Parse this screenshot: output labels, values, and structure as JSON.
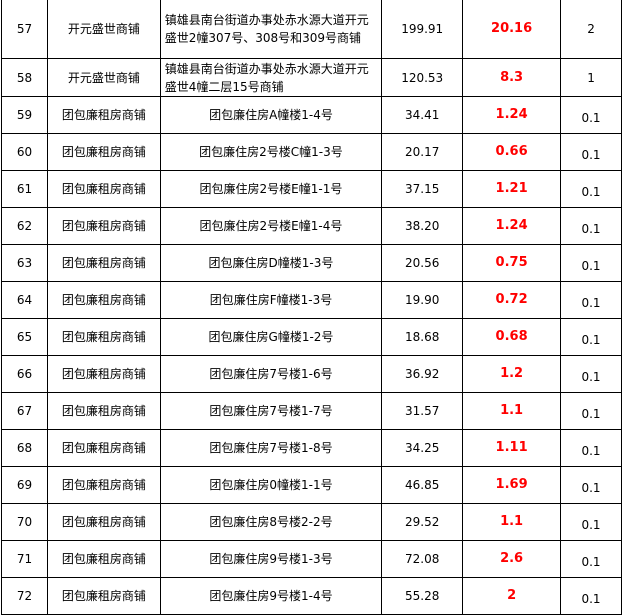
{
  "accent_color": "#ff0000",
  "rows": [
    {
      "no": "57",
      "name": "开元盛世商铺",
      "address": "镇雄县南台街道办事处赤水源大道开元盛世2幢307号、308号和309号商铺",
      "area": "199.91",
      "value": "20.16",
      "last": "2"
    },
    {
      "no": "58",
      "name": "开元盛世商铺",
      "address": "镇雄县南台街道办事处赤水源大道开元盛世4幢二层15号商铺",
      "area": "120.53",
      "value": "8.3",
      "last": "1"
    },
    {
      "no": "59",
      "name": "团包廉租房商铺",
      "address": "团包廉住房A幢楼1-4号",
      "area": "34.41",
      "value": "1.24",
      "last": "0.1"
    },
    {
      "no": "60",
      "name": "团包廉租房商铺",
      "address": "团包廉住房2号楼C幢1-3号",
      "area": "20.17",
      "value": "0.66",
      "last": "0.1"
    },
    {
      "no": "61",
      "name": "团包廉租房商铺",
      "address": "团包廉住房2号楼E幢1-1号",
      "area": "37.15",
      "value": "1.21",
      "last": "0.1"
    },
    {
      "no": "62",
      "name": "团包廉租房商铺",
      "address": "团包廉住房2号楼E幢1-4号",
      "area": "38.20",
      "value": "1.24",
      "last": "0.1"
    },
    {
      "no": "63",
      "name": "团包廉租房商铺",
      "address": "团包廉住房D幢楼1-3号",
      "area": "20.56",
      "value": "0.75",
      "last": "0.1"
    },
    {
      "no": "64",
      "name": "团包廉租房商铺",
      "address": "团包廉住房F幢楼1-3号",
      "area": "19.90",
      "value": "0.72",
      "last": "0.1"
    },
    {
      "no": "65",
      "name": "团包廉租房商铺",
      "address": "团包廉住房G幢楼1-2号",
      "area": "18.68",
      "value": "0.68",
      "last": "0.1"
    },
    {
      "no": "66",
      "name": "团包廉租房商铺",
      "address": "团包廉住房7号楼1-6号",
      "area": "36.92",
      "value": "1.2",
      "last": "0.1"
    },
    {
      "no": "67",
      "name": "团包廉租房商铺",
      "address": "团包廉住房7号楼1-7号",
      "area": "31.57",
      "value": "1.1",
      "last": "0.1"
    },
    {
      "no": "68",
      "name": "团包廉租房商铺",
      "address": "团包廉住房7号楼1-8号",
      "area": "34.25",
      "value": "1.11",
      "last": "0.1"
    },
    {
      "no": "69",
      "name": "团包廉租房商铺",
      "address": "团包廉住房0幢楼1-1号",
      "area": "46.85",
      "value": "1.69",
      "last": "0.1"
    },
    {
      "no": "70",
      "name": "团包廉租房商铺",
      "address": "团包廉住房8号楼2-2号",
      "area": "29.52",
      "value": "1.1",
      "last": "0.1"
    },
    {
      "no": "71",
      "name": "团包廉租房商铺",
      "address": "团包廉住房9号楼1-3号",
      "area": "72.08",
      "value": "2.6",
      "last": "0.1"
    },
    {
      "no": "72",
      "name": "团包廉租房商铺",
      "address": "团包廉住房9号楼1-4号",
      "area": "55.28",
      "value": "2",
      "last": "0.1"
    }
  ]
}
